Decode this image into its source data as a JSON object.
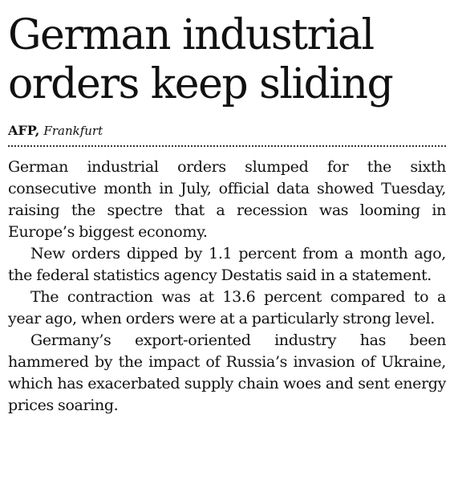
{
  "headline": "German industrial orders keep sliding",
  "byline": {
    "agency": "AFP",
    "separator": ",",
    "location": "Frankfurt"
  },
  "paragraphs": [
    "German industrial orders slumped for the sixth consecutive month in July, official data showed Tuesday, raising the spectre that a recession was looming in Europe’s biggest economy.",
    "New orders dipped by 1.1 percent from a month ago, the federal statistics agency Destatis said in a statement.",
    "The contraction was at 13.6 percent compared to a year ago, when orders were at a particularly strong level.",
    "Germany’s export-oriented industry has been hammered by the impact of Russia’s invasion of Ukraine, which has exacerbated supply chain woes and sent energy prices soaring."
  ]
}
